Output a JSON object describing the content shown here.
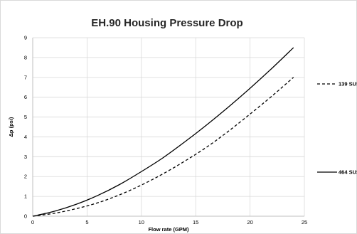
{
  "chart_data": {
    "type": "line",
    "title": "EH.90 Housing Pressure Drop",
    "xlabel": "Flow rate (GPM)",
    "ylabel": "Δp (psi)",
    "xlim": [
      0,
      25
    ],
    "ylim": [
      0,
      9
    ],
    "xticks": [
      0,
      5,
      10,
      15,
      20,
      25
    ],
    "yticks": [
      0,
      1,
      2,
      3,
      4,
      5,
      6,
      7,
      8,
      9
    ],
    "grid": true,
    "legend": "right",
    "series": [
      {
        "name": "139 SUS",
        "style": "dashed",
        "color": "#000000",
        "x": [
          0,
          2,
          4,
          6,
          8,
          10,
          12,
          14,
          16,
          18,
          20,
          22,
          24
        ],
        "y": [
          0,
          0.15,
          0.38,
          0.68,
          1.08,
          1.57,
          2.14,
          2.78,
          3.48,
          4.28,
          5.15,
          6.05,
          7.0
        ]
      },
      {
        "name": "464 SUS",
        "style": "solid",
        "color": "#000000",
        "x": [
          0,
          2,
          4,
          6,
          8,
          10,
          12,
          14,
          16,
          18,
          20,
          22,
          24
        ],
        "y": [
          0,
          0.25,
          0.6,
          1.05,
          1.6,
          2.25,
          2.95,
          3.75,
          4.6,
          5.5,
          6.45,
          7.45,
          8.5
        ]
      }
    ]
  }
}
